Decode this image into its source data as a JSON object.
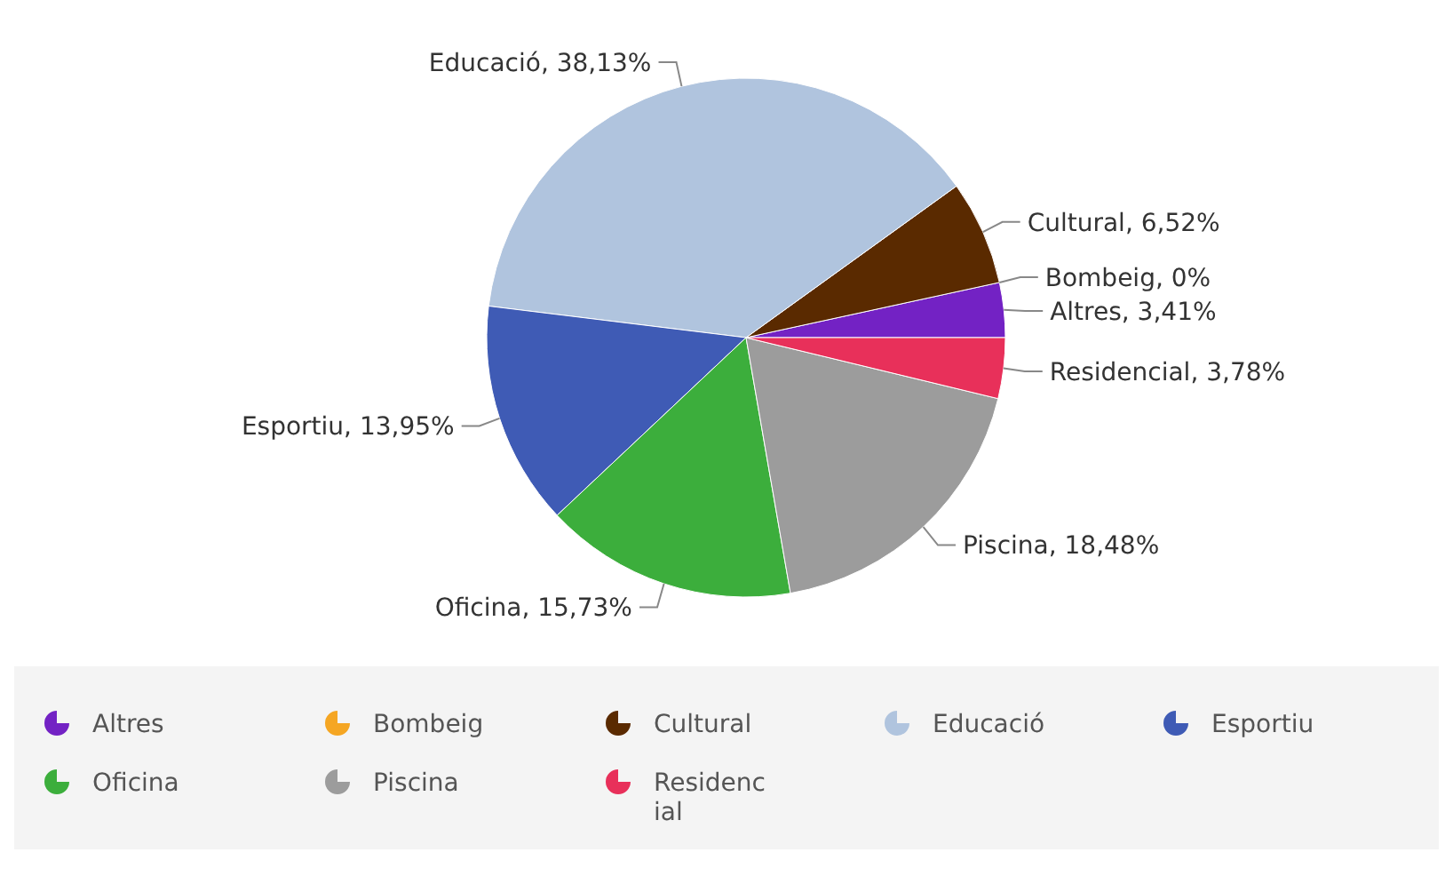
{
  "chart_data": {
    "type": "pie",
    "categories": [
      "Altres",
      "Bombeig",
      "Cultural",
      "Educació",
      "Esportiu",
      "Oficina",
      "Piscina",
      "Residencial"
    ],
    "values": [
      3.41,
      0,
      6.52,
      38.13,
      13.95,
      15.73,
      18.48,
      3.78
    ],
    "value_labels": [
      "Altres, 3,41%",
      "Bombeig, 0%",
      "Cultural, 6,52%",
      "Educació, 38,13%",
      "Esportiu, 13,95%",
      "Oficina, 15,73%",
      "Piscina, 18,48%",
      "Residencial, 3,78%"
    ],
    "colors": [
      "#7322c4",
      "#f5a623",
      "#5a2a00",
      "#b0c4de",
      "#3f5bb5",
      "#3cae3c",
      "#9c9c9c",
      "#e8305a"
    ],
    "legend": "bottom"
  }
}
